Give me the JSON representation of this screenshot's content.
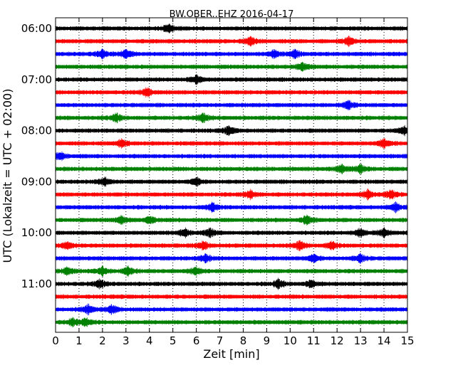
{
  "chart_data": {
    "type": "line",
    "title": "BW.OBER..EHZ 2016-04-17",
    "xlabel": "Zeit  [min]",
    "ylabel": "UTC (Lokalzeit = UTC + 02:00)",
    "x_ticks": [
      0,
      1,
      2,
      3,
      4,
      5,
      6,
      7,
      8,
      9,
      10,
      11,
      12,
      13,
      14,
      15
    ],
    "x_tick_labels": [
      "0",
      "1",
      "2",
      "3",
      "4",
      "5",
      "6",
      "7",
      "8",
      "9",
      "10",
      "11",
      "12",
      "13",
      "14",
      "15"
    ],
    "xlim": [
      0,
      15
    ],
    "y_ticks": [
      {
        "label": "06:00",
        "trace_index": 0
      },
      {
        "label": "07:00",
        "trace_index": 4
      },
      {
        "label": "08:00",
        "trace_index": 8
      },
      {
        "label": "09:00",
        "trace_index": 12
      },
      {
        "label": "10:00",
        "trace_index": 16
      },
      {
        "label": "11:00",
        "trace_index": 20
      }
    ],
    "grid": "x-dotted",
    "trace_color_cycle": [
      "#000000",
      "#ff0000",
      "#0000ff",
      "#008000"
    ],
    "trace_count": 24,
    "trace_minutes_each": 15,
    "traces": [
      {
        "start": "06:00",
        "color": "#000000",
        "events_min": [
          4.8
        ]
      },
      {
        "start": "06:15",
        "color": "#ff0000",
        "events_min": [
          8.3,
          12.5
        ]
      },
      {
        "start": "06:30",
        "color": "#0000ff",
        "events_min": [
          2.0,
          3.0,
          9.3,
          10.2
        ]
      },
      {
        "start": "06:45",
        "color": "#008000",
        "events_min": [
          10.5
        ]
      },
      {
        "start": "07:00",
        "color": "#000000",
        "events_min": [
          6.0
        ]
      },
      {
        "start": "07:15",
        "color": "#ff0000",
        "events_min": [
          3.9
        ]
      },
      {
        "start": "07:30",
        "color": "#0000ff",
        "events_min": [
          12.5
        ]
      },
      {
        "start": "07:45",
        "color": "#008000",
        "events_min": [
          2.6,
          6.3
        ]
      },
      {
        "start": "08:00",
        "color": "#000000",
        "events_min": [
          7.4,
          14.9
        ]
      },
      {
        "start": "08:15",
        "color": "#ff0000",
        "events_min": [
          2.8,
          14.0
        ]
      },
      {
        "start": "08:30",
        "color": "#0000ff",
        "events_min": [
          0.2
        ]
      },
      {
        "start": "08:45",
        "color": "#008000",
        "events_min": [
          12.2,
          13.0
        ]
      },
      {
        "start": "09:00",
        "color": "#000000",
        "events_min": [
          2.1,
          6.0
        ]
      },
      {
        "start": "09:15",
        "color": "#ff0000",
        "events_min": [
          8.3,
          13.3,
          14.3
        ]
      },
      {
        "start": "09:30",
        "color": "#0000ff",
        "events_min": [
          6.7,
          14.5
        ]
      },
      {
        "start": "09:45",
        "color": "#008000",
        "events_min": [
          2.8,
          4.0,
          10.7
        ]
      },
      {
        "start": "10:00",
        "color": "#000000",
        "events_min": [
          5.5,
          6.6,
          13.0,
          14.0
        ]
      },
      {
        "start": "10:15",
        "color": "#ff0000",
        "events_min": [
          0.5,
          6.3,
          10.4,
          11.8
        ]
      },
      {
        "start": "10:30",
        "color": "#0000ff",
        "events_min": [
          6.4,
          11.0,
          13.0
        ]
      },
      {
        "start": "10:45",
        "color": "#008000",
        "events_min": [
          0.5,
          2.0,
          3.1,
          6.0
        ]
      },
      {
        "start": "11:00",
        "color": "#000000",
        "events_min": [
          1.9,
          9.5,
          10.9
        ]
      },
      {
        "start": "11:15",
        "color": "#ff0000",
        "events_min": []
      },
      {
        "start": "11:30",
        "color": "#0000ff",
        "events_min": [
          1.4,
          2.4
        ]
      },
      {
        "start": "11:45",
        "color": "#008000",
        "events_min": [
          0.7,
          1.3
        ]
      }
    ]
  }
}
